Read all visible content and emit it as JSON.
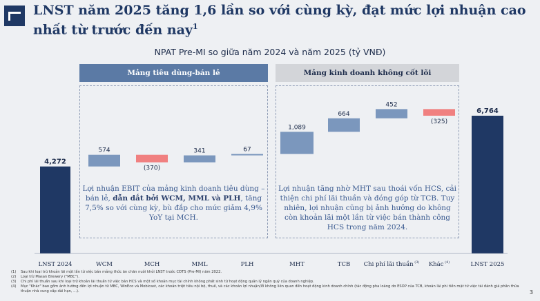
{
  "header": {
    "title": "LNST năm 2025 tăng 1,6 lần so với cùng kỳ, đạt mức lợi nhuận cao nhất từ trước đến nay",
    "title_sup": "1"
  },
  "segments": {
    "consumer": "Mảng tiêu dùng-bán lẻ",
    "noncore": "Mảng kinh doanh không cốt lõi"
  },
  "notes": {
    "consumer_1": "Lợi nhuận EBIT của mảng kinh doanh tiêu dùng – bán lẻ, ",
    "consumer_bold": "dẫn dắt bởi WCM, MML và PLH",
    "consumer_2": ", tăng 7,5% so với cùng kỳ, bù đắp cho mức giảm 4,9% YoY tại MCH.",
    "noncore": "Lợi nhuận tăng nhờ MHT sau thoái vốn HCS, cải thiện chi phí lãi thuần và đóng góp từ TCB. Tuy nhiên, lợi nhuận cũng bị ảnh hưởng do không còn khoản lãi một lần từ việc bán thành công HCS trong năm 2024."
  },
  "chart_data": {
    "type": "waterfall",
    "title": "NPAT Pre-MI so giữa năm 2024 và năm 2025 (tỷ VNĐ)",
    "categories": [
      "LNST 2024",
      "WCM",
      "MCH",
      "MML",
      "PLH",
      "MHT",
      "TCB",
      "Chi phí lãi thuần",
      "Khác",
      "LNST 2025"
    ],
    "category_sups": [
      "",
      "",
      "",
      "",
      "",
      "",
      "",
      "(3)",
      "(4)",
      ""
    ],
    "values": [
      4272,
      574,
      -370,
      341,
      67,
      1089,
      664,
      452,
      -325,
      6764
    ],
    "labels": [
      "4,272",
      "574",
      "(370)",
      "341",
      "67",
      "1,089",
      "664",
      "452",
      "(325)",
      "6,764"
    ],
    "kinds": [
      "total",
      "delta",
      "delta",
      "delta",
      "delta",
      "delta",
      "delta",
      "delta",
      "delta",
      "total"
    ],
    "colors": {
      "total": "#1f3864",
      "increase": "#7b97bd",
      "decrease": "#f08080"
    }
  },
  "footnotes": [
    {
      "num": "(1)",
      "text": "Sau khi loại trừ khoản lãi một lần từ việc bán mảng thức ăn chăn nuôi khỏi LNST trước CĐTS (Pre-MI) năm 2022."
    },
    {
      "num": "(2)",
      "text": "Loại trừ Masan Brewery (\"MBC\")."
    },
    {
      "num": "(3)",
      "text": "Chi phí lãi thuần sau khi loại trừ khoản lãi thuần từ việc bán HCS và một số khoản mục tài chính không phát sinh từ hoạt động quản lý ngân quỹ của doanh nghiệp."
    },
    {
      "num": "(4)",
      "text": "Mục \"Khác\" bao gồm ảnh hưởng đến lợi nhuận từ MBC, WinEco và Mobicast, các khoản triệt tiêu nội bộ, thuế, và các khoản lợi nhuận/lỗ không liên quan đến hoạt động kinh doanh chính (tác động pha loãng do ESOP của TCB, khoản lãi phi tiền mặt từ việc tái đánh giá phân thừa thuận nhà cung cấp dài hạn, ...)."
    }
  ],
  "page_number": "3"
}
